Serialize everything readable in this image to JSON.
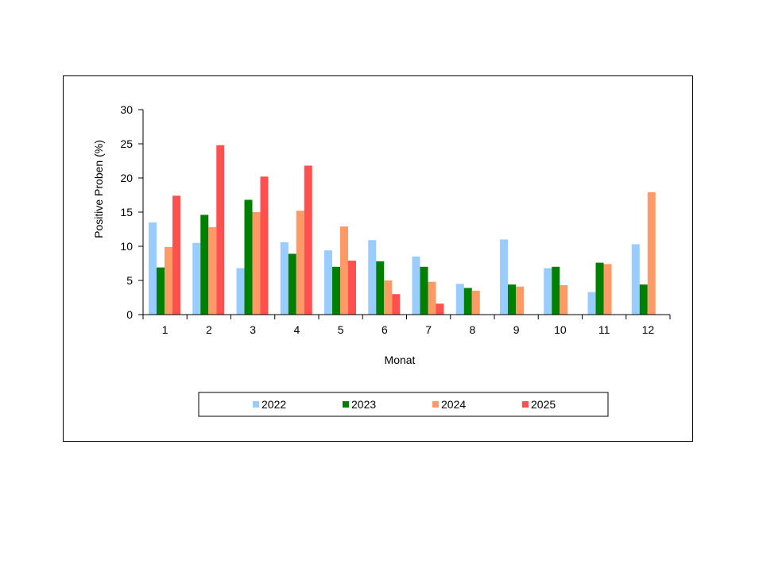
{
  "chart_data": {
    "type": "bar",
    "title": "",
    "xlabel": "Monat",
    "ylabel": "Positive Proben (%)",
    "ylim": [
      0,
      30
    ],
    "yticks": [
      "0",
      "5",
      "10",
      "15",
      "20",
      "25",
      "30"
    ],
    "grid": false,
    "legend_position": "bottom",
    "categories": [
      "1",
      "2",
      "3",
      "4",
      "5",
      "6",
      "7",
      "8",
      "9",
      "10",
      "11",
      "12"
    ],
    "series": [
      {
        "name": "2022",
        "color": "#99CCFF",
        "values": [
          13.5,
          10.5,
          6.8,
          10.6,
          9.4,
          10.9,
          8.5,
          4.5,
          11.0,
          6.8,
          3.3,
          10.3
        ]
      },
      {
        "name": "2023",
        "color": "#008000",
        "values": [
          6.9,
          14.6,
          16.8,
          8.9,
          7.0,
          7.8,
          7.0,
          3.9,
          4.4,
          7.0,
          7.6,
          4.4
        ]
      },
      {
        "name": "2024",
        "color": "#FF9966",
        "values": [
          9.9,
          12.8,
          15.0,
          15.2,
          12.9,
          5.0,
          4.8,
          3.5,
          4.1,
          4.3,
          7.4,
          17.9
        ]
      },
      {
        "name": "2025",
        "color": "#FF5050",
        "values": [
          17.4,
          24.8,
          20.2,
          21.8,
          7.9,
          3.0,
          1.6,
          null,
          null,
          null,
          null,
          null
        ]
      }
    ]
  }
}
